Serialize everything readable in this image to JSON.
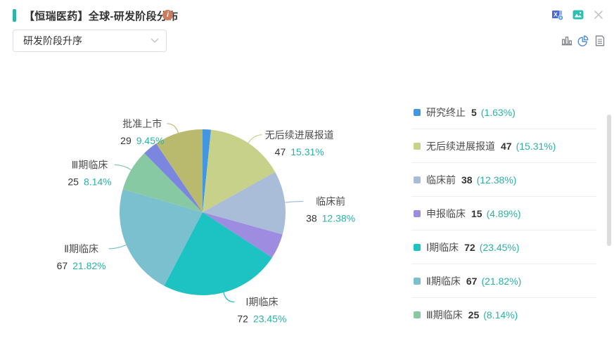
{
  "header": {
    "title": "【恒瑞医药】全球-研发阶段分布",
    "info_glyph": "i"
  },
  "controls": {
    "sort_dropdown": {
      "value": "研发阶段升序"
    }
  },
  "toolbar": {
    "row1": [
      {
        "icon": "excel-export-icon"
      },
      {
        "icon": "image-export-icon"
      },
      {
        "icon": "close-icon"
      }
    ],
    "row2": [
      {
        "icon": "bar-chart-view-icon",
        "active": false
      },
      {
        "icon": "pie-chart-view-icon",
        "active": true
      },
      {
        "icon": "table-view-icon",
        "active": false
      }
    ]
  },
  "colors": {
    "accent_teal": "#2cb5a8",
    "info_icon_bg": "#cd7d5e",
    "percent_text": "#29b3a6",
    "label_name_text": "#4d4d4d",
    "count_text": "#333333",
    "icon_gray": "#7e8188",
    "icon_blue_active": "#4c86d8",
    "scrollbar": "#dcdcdc"
  },
  "chart_data": {
    "type": "pie",
    "title": "【恒瑞医药】全球-研发阶段分布",
    "legend_position": "right",
    "start_angle": 90,
    "slices": [
      {
        "name": "研究终止",
        "value": 5,
        "pct": "1.63%",
        "color": "#4397e0",
        "label": false,
        "legend": true
      },
      {
        "name": "无后续进展报道",
        "value": 47,
        "pct": "15.31%",
        "color": "#c7d189",
        "label": true,
        "legend": true
      },
      {
        "name": "临床前",
        "value": 38,
        "pct": "12.38%",
        "color": "#a9bdd9",
        "label": true,
        "legend": true
      },
      {
        "name": "申报临床",
        "value": 15,
        "pct": "4.89%",
        "color": "#9e8ce1",
        "label": false,
        "legend": true
      },
      {
        "name": "Ⅰ期临床",
        "value": 72,
        "pct": "23.45%",
        "color": "#1dc2c2",
        "label": true,
        "legend": true
      },
      {
        "name": "Ⅱ期临床",
        "value": 67,
        "pct": "21.82%",
        "color": "#7bc0cf",
        "label": true,
        "legend": true
      },
      {
        "name": "Ⅲ期临床",
        "value": 25,
        "pct": "8.14%",
        "color": "#87c9a2",
        "label": true,
        "legend": true
      },
      {
        "name": "",
        "value": 9,
        "pct": "",
        "color": "#7b87de",
        "label": false,
        "legend": false
      },
      {
        "name": "批准上市",
        "value": 29,
        "pct": "9.45%",
        "color": "#b9ba6e",
        "label": true,
        "legend": false
      }
    ]
  }
}
